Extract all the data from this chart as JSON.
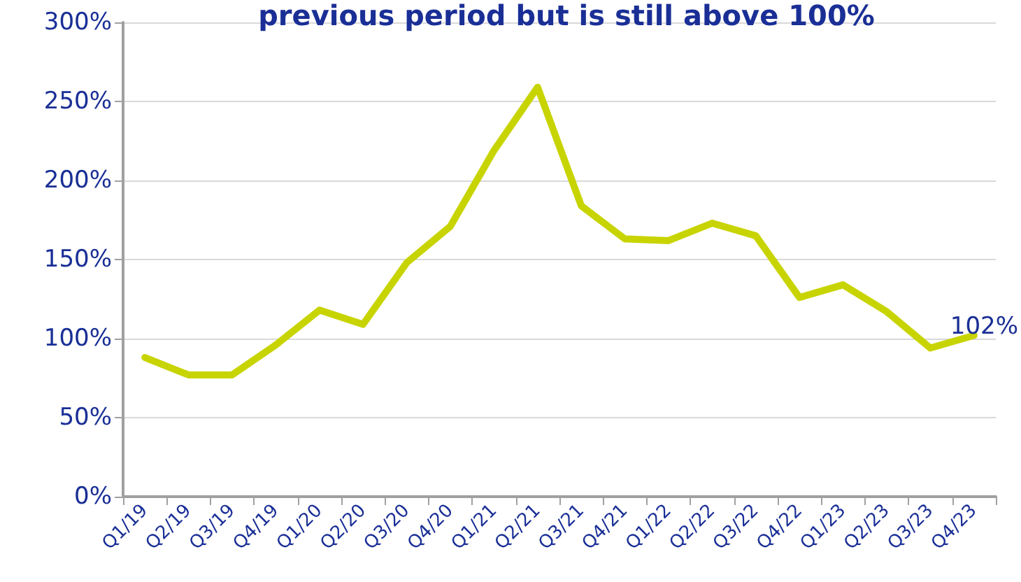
{
  "chart_data": {
    "type": "line",
    "title": "previous period but is still above 100%",
    "categories": [
      "Q1/19",
      "Q2/19",
      "Q3/19",
      "Q4/19",
      "Q1/20",
      "Q2/20",
      "Q3/20",
      "Q4/20",
      "Q1/21",
      "Q2/21",
      "Q3/21",
      "Q4/21",
      "Q1/22",
      "Q2/22",
      "Q3/22",
      "Q4/22",
      "Q1/23",
      "Q2/23",
      "Q3/23",
      "Q4/23"
    ],
    "series": [
      {
        "color": "#c8d400",
        "values": [
          88,
          77,
          77,
          96,
          118,
          109,
          148,
          171,
          219,
          259,
          184,
          163,
          162,
          173,
          165,
          126,
          134,
          117,
          94,
          102
        ],
        "value_labels": [
          null,
          null,
          null,
          null,
          null,
          null,
          null,
          null,
          null,
          null,
          null,
          null,
          null,
          null,
          null,
          null,
          null,
          null,
          null,
          "102%"
        ]
      }
    ],
    "ylim": [
      0,
      300
    ],
    "yticks": [
      {
        "value": 0,
        "label": "0%"
      },
      {
        "value": 50,
        "label": "50%"
      },
      {
        "value": 100,
        "label": "100%"
      },
      {
        "value": 150,
        "label": "150%"
      },
      {
        "value": 200,
        "label": "200%"
      },
      {
        "value": 250,
        "label": "250%"
      },
      {
        "value": 300,
        "label": "300%"
      }
    ],
    "grid": "y",
    "marker": "none",
    "line_style": "solid"
  }
}
